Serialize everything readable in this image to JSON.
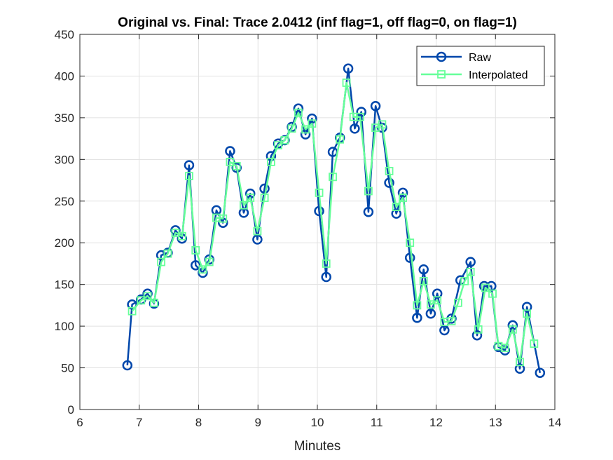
{
  "chart_data": {
    "type": "line",
    "title": "Original vs. Final: Trace 2.0412 (inf flag=1, off flag=0, on flag=1)",
    "xlabel": "Minutes",
    "ylabel": "",
    "xlim": [
      6,
      14
    ],
    "ylim": [
      0,
      450
    ],
    "xticks": [
      6,
      7,
      8,
      9,
      10,
      11,
      12,
      13,
      14
    ],
    "yticks": [
      0,
      50,
      100,
      150,
      200,
      250,
      300,
      350,
      400,
      450
    ],
    "grid": true,
    "legend_position": "top-right",
    "series": [
      {
        "name": "Raw",
        "color": "#0047AB",
        "marker": "circle",
        "x": [
          6.8,
          6.88,
          7.03,
          7.14,
          7.25,
          7.37,
          7.48,
          7.61,
          7.72,
          7.84,
          7.95,
          8.07,
          8.18,
          8.3,
          8.41,
          8.53,
          8.64,
          8.76,
          8.87,
          8.99,
          9.11,
          9.22,
          9.34,
          9.45,
          9.57,
          9.68,
          9.8,
          9.91,
          10.03,
          10.15,
          10.26,
          10.38,
          10.52,
          10.63,
          10.74,
          10.86,
          10.98,
          11.09,
          11.21,
          11.33,
          11.44,
          11.56,
          11.68,
          11.79,
          11.91,
          12.02,
          12.14,
          12.26,
          12.41,
          12.58,
          12.69,
          12.81,
          12.93,
          13.05,
          13.16,
          13.29,
          13.41,
          13.53,
          13.75
        ],
        "y": [
          53,
          126,
          132,
          139,
          127,
          185,
          188,
          215,
          205,
          293,
          173,
          164,
          180,
          239,
          224,
          310,
          290,
          236,
          259,
          204,
          265,
          304,
          319,
          323,
          339,
          361,
          330,
          349,
          238,
          159,
          309,
          326,
          409,
          337,
          357,
          237,
          364,
          338,
          272,
          235,
          260,
          182,
          110,
          168,
          115,
          139,
          95,
          109,
          155,
          177,
          89,
          148,
          148,
          75,
          71,
          101,
          49,
          123,
          44
        ]
      },
      {
        "name": "Interpolated",
        "color": "#66FF99",
        "marker": "square",
        "x": [
          6.88,
          7.03,
          7.14,
          7.25,
          7.37,
          7.48,
          7.61,
          7.72,
          7.84,
          7.95,
          8.07,
          8.18,
          8.3,
          8.41,
          8.53,
          8.64,
          8.76,
          8.87,
          8.99,
          9.11,
          9.22,
          9.34,
          9.45,
          9.57,
          9.68,
          9.8,
          9.91,
          10.03,
          10.15,
          10.26,
          10.38,
          10.49,
          10.61,
          10.72,
          10.86,
          10.98,
          11.09,
          11.21,
          11.33,
          11.44,
          11.56,
          11.68,
          11.79,
          11.91,
          12.02,
          12.14,
          12.26,
          12.37,
          12.48,
          12.58,
          12.71,
          12.83,
          12.95,
          13.05,
          13.16,
          13.29,
          13.41,
          13.53,
          13.65
        ],
        "y": [
          118,
          131,
          136,
          128,
          177,
          187,
          212,
          208,
          280,
          191,
          168,
          177,
          230,
          229,
          297,
          292,
          245,
          254,
          214,
          254,
          297,
          317,
          323,
          337,
          356,
          336,
          343,
          260,
          175,
          279,
          324,
          392,
          351,
          351,
          262,
          338,
          342,
          286,
          243,
          254,
          200,
          125,
          154,
          126,
          131,
          105,
          106,
          128,
          154,
          165,
          96,
          146,
          139,
          76,
          74,
          96,
          57,
          115,
          79
        ]
      }
    ]
  }
}
